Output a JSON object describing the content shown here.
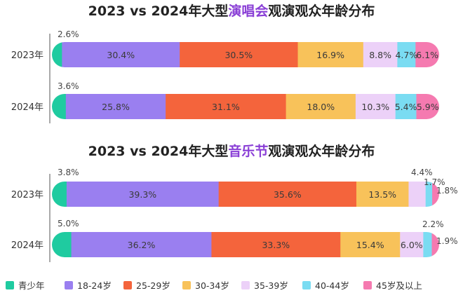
{
  "colors": {
    "青少年": "#1fcba0",
    "18-24岁": "#9a7ff0",
    "25-29岁": "#f4643c",
    "30-34岁": "#f8c25a",
    "35-39岁": "#ecd1f8",
    "40-44岁": "#7adcf2",
    "45岁及以上": "#f57ab0"
  },
  "legend": [
    "青少年",
    "18-24岁",
    "25-29岁",
    "30-34岁",
    "35-39岁",
    "40-44岁",
    "45岁及以上"
  ],
  "chart_data": [
    {
      "type": "bar",
      "orientation": "horizontal",
      "stacked": true,
      "title_prefix": "2023 vs 2024年大型",
      "title_highlight": "演唱会",
      "title_suffix": "观演观众年龄分布",
      "categories": [
        "2023年",
        "2024年"
      ],
      "series": [
        {
          "name": "青少年",
          "values": [
            2.6,
            3.6
          ]
        },
        {
          "name": "18-24岁",
          "values": [
            30.4,
            25.8
          ]
        },
        {
          "name": "25-29岁",
          "values": [
            30.5,
            31.1
          ]
        },
        {
          "name": "30-34岁",
          "values": [
            16.9,
            18.0
          ]
        },
        {
          "name": "35-39岁",
          "values": [
            8.8,
            10.3
          ]
        },
        {
          "name": "40-44岁",
          "values": [
            4.7,
            5.4
          ]
        },
        {
          "name": "45岁及以上",
          "values": [
            6.1,
            5.9
          ]
        }
      ],
      "labels": [
        [
          "2.6%",
          "30.4%",
          "30.5%",
          "16.9%",
          "8.8%",
          "4.7%",
          "6.1%"
        ],
        [
          "3.6%",
          "25.8%",
          "31.1%",
          "18.0%",
          "10.3%",
          "5.4%",
          "5.9%"
        ]
      ]
    },
    {
      "type": "bar",
      "orientation": "horizontal",
      "stacked": true,
      "title_prefix": "2023 vs 2024年大型",
      "title_highlight": "音乐节",
      "title_suffix": "观演观众年龄分布",
      "categories": [
        "2023年",
        "2024年"
      ],
      "series": [
        {
          "name": "青少年",
          "values": [
            3.8,
            5.0
          ]
        },
        {
          "name": "18-24岁",
          "values": [
            39.3,
            36.2
          ]
        },
        {
          "name": "25-29岁",
          "values": [
            35.6,
            33.3
          ]
        },
        {
          "name": "30-34岁",
          "values": [
            13.5,
            15.4
          ]
        },
        {
          "name": "35-39岁",
          "values": [
            4.4,
            6.0
          ]
        },
        {
          "name": "40-44岁",
          "values": [
            1.7,
            2.2
          ]
        },
        {
          "name": "45岁及以上",
          "values": [
            1.8,
            1.9
          ]
        }
      ],
      "labels": [
        [
          "3.8%",
          "39.3%",
          "35.6%",
          "13.5%",
          "4.4%",
          "1.7%",
          "1.8%"
        ],
        [
          "5.0%",
          "36.2%",
          "33.3%",
          "15.4%",
          "6.0%",
          "2.2%",
          "1.9%"
        ]
      ]
    }
  ]
}
